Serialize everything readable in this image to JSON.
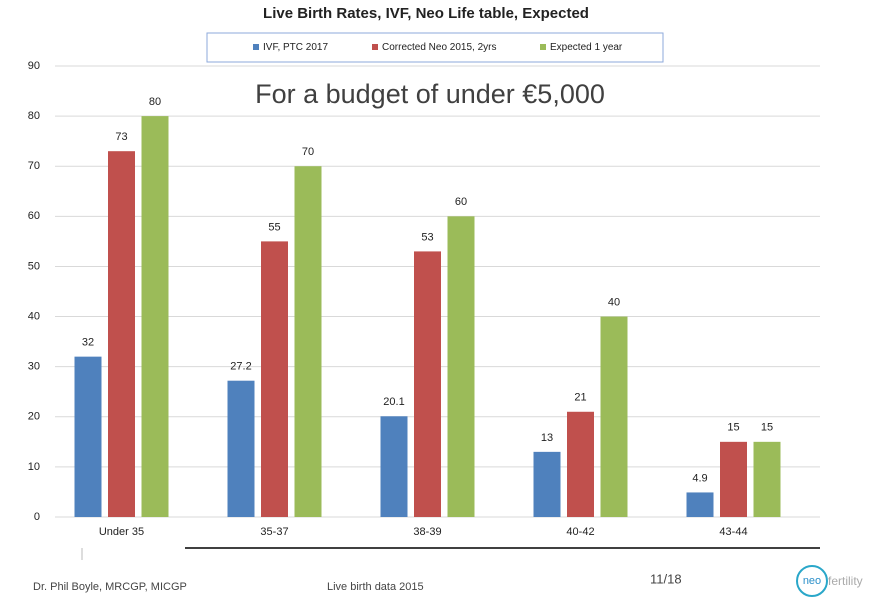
{
  "chart_data": {
    "type": "bar",
    "title": "Live Birth Rates,  IVF, Neo Life table, Expected",
    "annotation": "For a budget of under €5,000",
    "categories": [
      "Under 35",
      "35-37",
      "38-39",
      "40-42",
      "43-44"
    ],
    "series": [
      {
        "name": "IVF, PTC 2017",
        "color": "#4f81bd",
        "values": [
          32,
          27.2,
          20.1,
          13,
          4.9
        ]
      },
      {
        "name": "Corrected Neo 2015, 2yrs",
        "color": "#c0504d",
        "values": [
          73,
          55,
          53,
          21,
          15
        ]
      },
      {
        "name": "Expected 1 year",
        "color": "#9bbb59",
        "values": [
          80,
          70,
          60,
          40,
          15
        ]
      }
    ],
    "ylim": [
      0,
      90
    ],
    "yticks": [
      0,
      10,
      20,
      30,
      40,
      50,
      60,
      70,
      80,
      90
    ],
    "grid": true,
    "data_labels": true
  },
  "footer": {
    "author": "Dr. Phil Boyle, MRCGP, MICGP",
    "source": "Live birth data 2015",
    "page": "11/18",
    "logo": [
      "neo",
      "fertility"
    ]
  }
}
